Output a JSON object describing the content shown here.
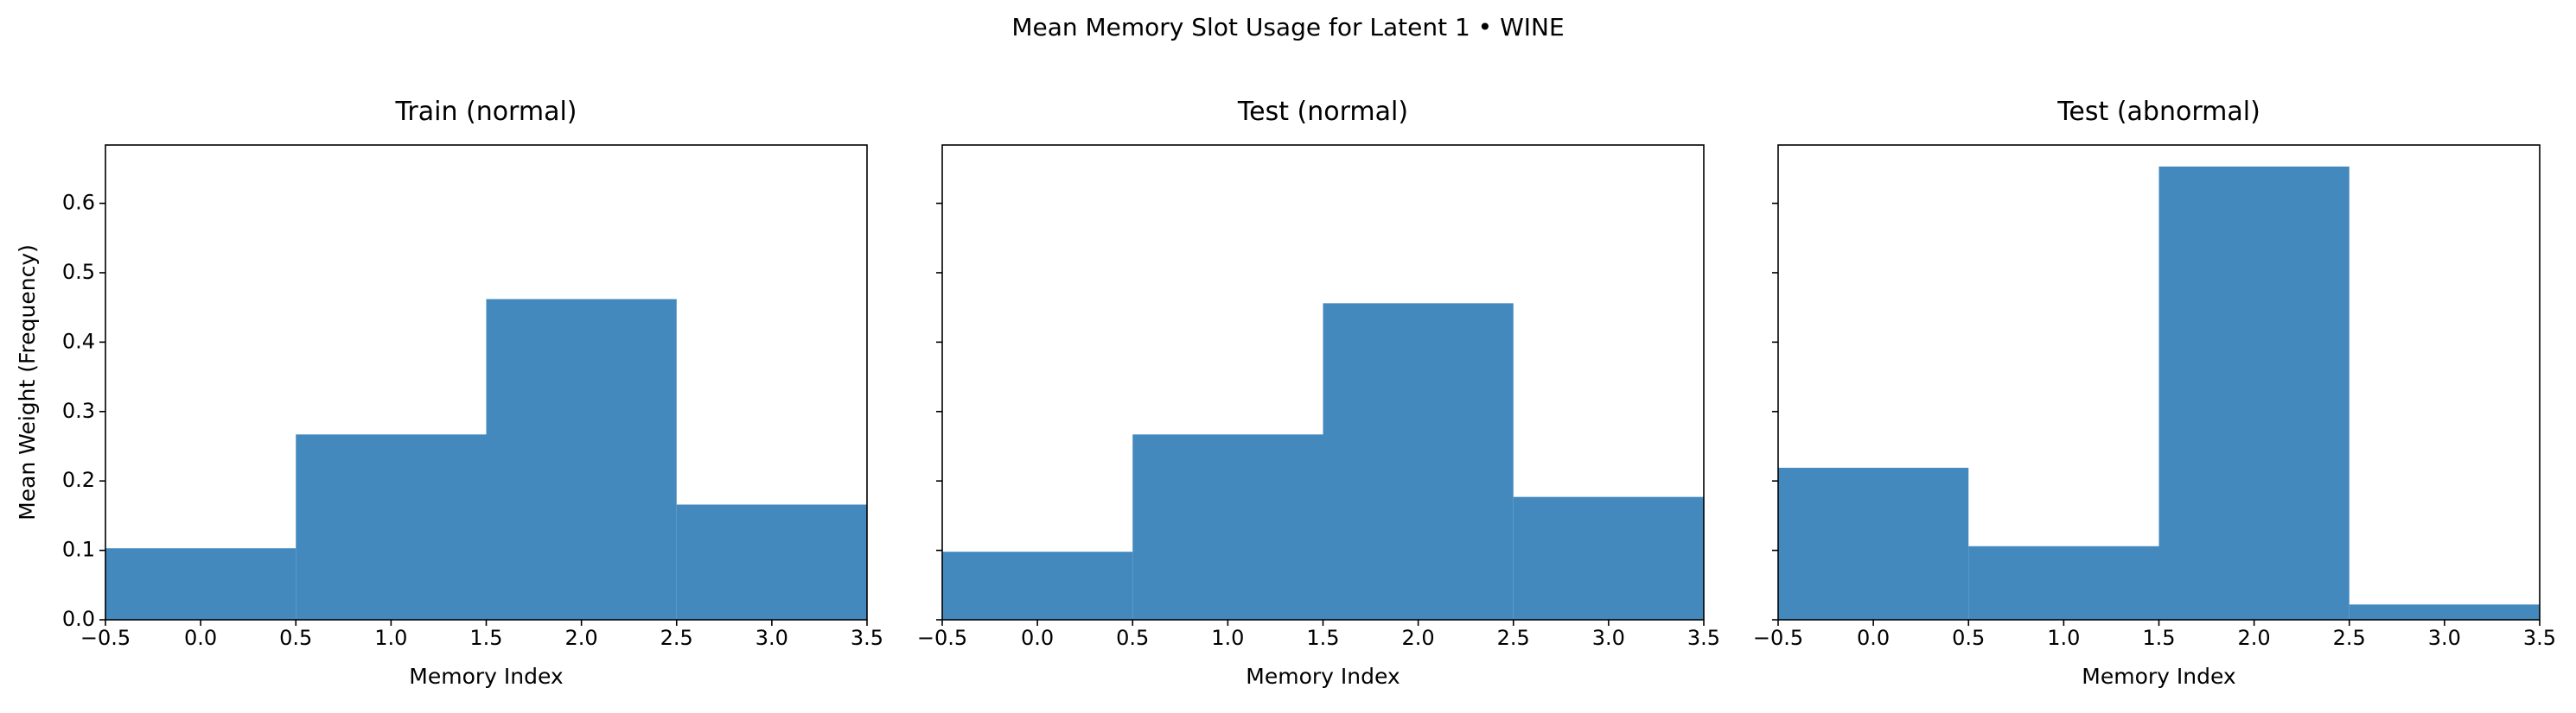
{
  "figure": {
    "suptitle": "Mean Memory Slot Usage for Latent 1 • WINE"
  },
  "style": {
    "bar_color": "#4389be",
    "axis_color": "#000000"
  },
  "chart_data": [
    {
      "type": "bar",
      "title": "Train (normal)",
      "xlabel": "Memory Index",
      "ylabel": "Mean Weight (Frequency)",
      "x": [
        0,
        1,
        2,
        3
      ],
      "values": [
        0.103,
        0.267,
        0.462,
        0.166
      ],
      "bar_width": 1.0,
      "xlim": [
        -0.5,
        3.5
      ],
      "ylim": [
        0,
        0.684
      ],
      "xticks": [
        -0.5,
        0.0,
        0.5,
        1.0,
        1.5,
        2.0,
        2.5,
        3.0,
        3.5
      ],
      "xtick_labels": [
        "−0.5",
        "0.0",
        "0.5",
        "1.0",
        "1.5",
        "2.0",
        "2.5",
        "3.0",
        "3.5"
      ],
      "yticks": [
        0.0,
        0.1,
        0.2,
        0.3,
        0.4,
        0.5,
        0.6
      ],
      "ytick_labels": [
        "0.0",
        "0.1",
        "0.2",
        "0.3",
        "0.4",
        "0.5",
        "0.6"
      ],
      "grid": false
    },
    {
      "type": "bar",
      "title": "Test (normal)",
      "xlabel": "Memory Index",
      "ylabel": "",
      "x": [
        0,
        1,
        2,
        3
      ],
      "values": [
        0.098,
        0.267,
        0.456,
        0.177
      ],
      "bar_width": 1.0,
      "xlim": [
        -0.5,
        3.5
      ],
      "ylim": [
        0,
        0.684
      ],
      "xticks": [
        -0.5,
        0.0,
        0.5,
        1.0,
        1.5,
        2.0,
        2.5,
        3.0,
        3.5
      ],
      "xtick_labels": [
        "−0.5",
        "0.0",
        "0.5",
        "1.0",
        "1.5",
        "2.0",
        "2.5",
        "3.0",
        "3.5"
      ],
      "yticks": [
        0.0,
        0.1,
        0.2,
        0.3,
        0.4,
        0.5,
        0.6
      ],
      "ytick_labels": [],
      "grid": false
    },
    {
      "type": "bar",
      "title": "Test (abnormal)",
      "xlabel": "Memory Index",
      "ylabel": "",
      "x": [
        0,
        1,
        2,
        3
      ],
      "values": [
        0.219,
        0.106,
        0.653,
        0.022
      ],
      "bar_width": 1.0,
      "xlim": [
        -0.5,
        3.5
      ],
      "ylim": [
        0,
        0.684
      ],
      "xticks": [
        -0.5,
        0.0,
        0.5,
        1.0,
        1.5,
        2.0,
        2.5,
        3.0,
        3.5
      ],
      "xtick_labels": [
        "−0.5",
        "0.0",
        "0.5",
        "1.0",
        "1.5",
        "2.0",
        "2.5",
        "3.0",
        "3.5"
      ],
      "yticks": [
        0.0,
        0.1,
        0.2,
        0.3,
        0.4,
        0.5,
        0.6
      ],
      "ytick_labels": [],
      "grid": false
    }
  ]
}
